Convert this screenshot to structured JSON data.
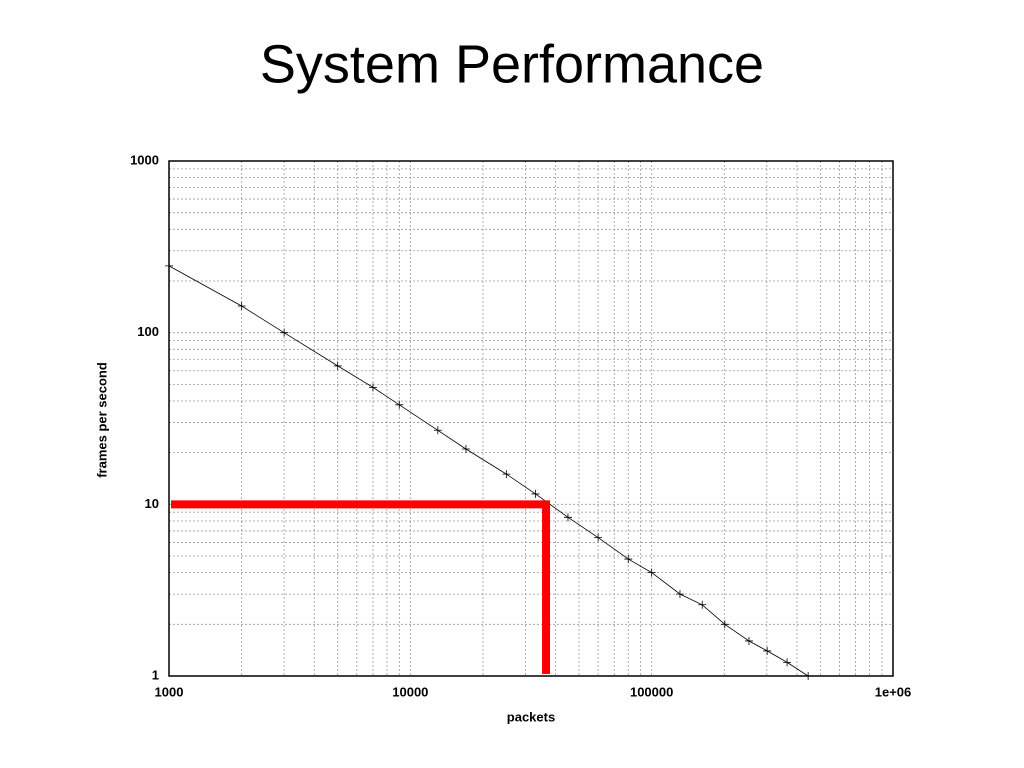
{
  "chart_data": {
    "type": "line",
    "title": "System Performance",
    "x_label": "packets",
    "y_label": "frames per second",
    "x": [
      1000,
      2000,
      3000,
      5000,
      7000,
      9000,
      13000,
      17000,
      25000,
      33000,
      45000,
      60000,
      80000,
      100000,
      131000,
      162000,
      201000,
      253000,
      301000,
      364000,
      445000
    ],
    "series": [
      {
        "color": "#000000",
        "values": [
          245,
          143,
          100,
          64,
          48,
          38,
          27,
          21,
          15,
          11.5,
          8.4,
          6.4,
          4.8,
          4,
          3,
          2.6,
          2,
          1.6,
          1.4,
          1.2,
          1
        ]
      }
    ],
    "xlim": [
      1000,
      1000000
    ],
    "ylim": [
      1,
      1000
    ],
    "xlog": true,
    "ylog": true,
    "grid": true,
    "xticks": [
      1000,
      10000,
      100000,
      {
        "value": 1000000,
        "label": "1e+06"
      }
    ],
    "yticks": [
      1,
      10,
      100,
      1000
    ],
    "highlight": {
      "x": 36500,
      "y": 10,
      "color": "#ff0000"
    }
  }
}
